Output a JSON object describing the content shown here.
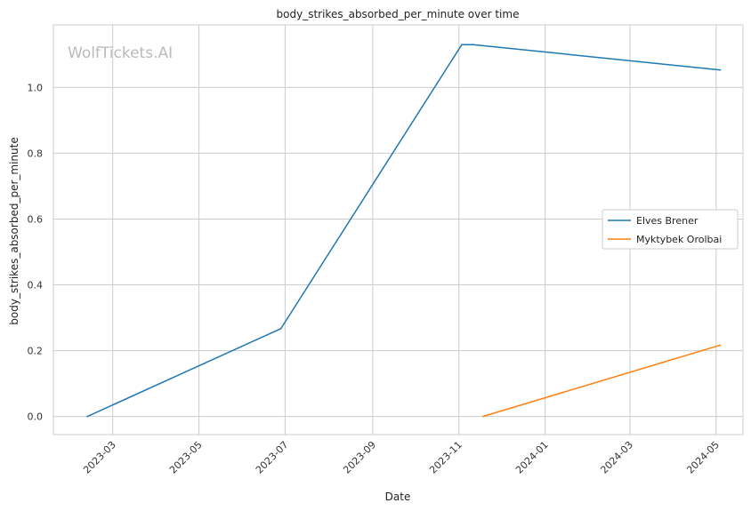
{
  "chart_data": {
    "type": "line",
    "title": "body_strikes_absorbed_per_minute over time",
    "xlabel": "Date",
    "ylabel": "body_strikes_absorbed_per_minute",
    "watermark": "WolfTickets.AI",
    "x_ticks": [
      "2023-03",
      "2023-05",
      "2023-07",
      "2023-09",
      "2023-11",
      "2024-01",
      "2024-03",
      "2024-05"
    ],
    "y_ticks": [
      "0.0",
      "0.2",
      "0.4",
      "0.6",
      "0.8",
      "1.0"
    ],
    "xlim": [
      "2023-01-18",
      "2024-05-20"
    ],
    "ylim": [
      -0.055,
      1.19
    ],
    "grid": true,
    "legend_position": "center-right",
    "series": [
      {
        "name": "Elves Brener",
        "color": "#1f77b4",
        "points": [
          {
            "x": "2023-02-11",
            "y": 0.0
          },
          {
            "x": "2023-06-28",
            "y": 0.267
          },
          {
            "x": "2023-11-03",
            "y": 1.13
          },
          {
            "x": "2023-11-11",
            "y": 1.13
          },
          {
            "x": "2024-05-04",
            "y": 1.053
          }
        ]
      },
      {
        "name": "Myktybek Orolbai",
        "color": "#ff7f0e",
        "points": [
          {
            "x": "2023-11-18",
            "y": 0.0
          },
          {
            "x": "2024-05-04",
            "y": 0.217
          }
        ]
      }
    ]
  }
}
